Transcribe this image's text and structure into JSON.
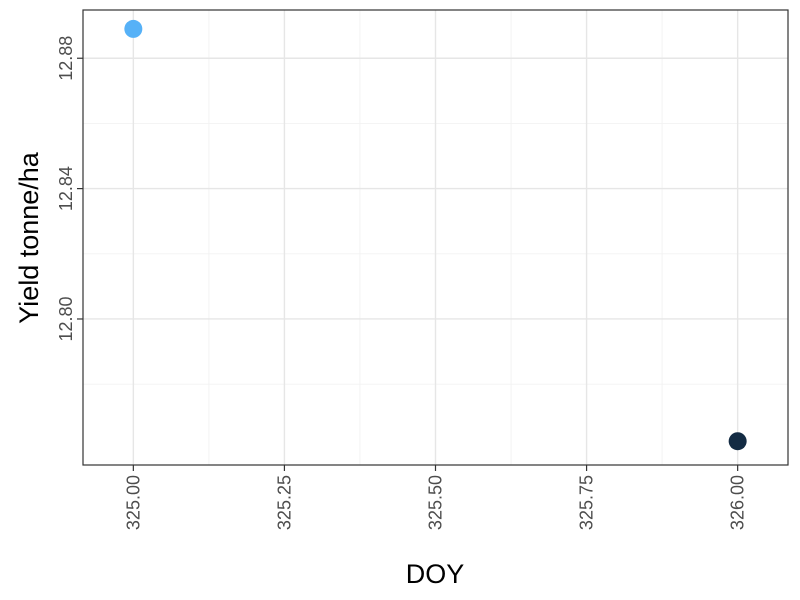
{
  "chart_data": {
    "type": "scatter",
    "title": "",
    "xlabel": "DOY",
    "ylabel": "Yield tonne/ha",
    "xlim": [
      324.9167,
      326.0833
    ],
    "ylim": [
      12.7552,
      12.8948
    ],
    "x_ticks": [
      325.0,
      325.25,
      325.5,
      325.75,
      326.0
    ],
    "x_tick_labels": [
      "325.00",
      "325.25",
      "325.50",
      "325.75",
      "326.00"
    ],
    "y_ticks": [
      12.8,
      12.84,
      12.88
    ],
    "y_tick_labels": [
      "12.80",
      "12.84",
      "12.88"
    ],
    "grid": true,
    "legend": "none",
    "points": [
      {
        "x": 325.0,
        "y": 12.889,
        "color": "#56B1F7"
      },
      {
        "x": 326.0,
        "y": 12.7625,
        "color": "#132B43"
      }
    ]
  }
}
